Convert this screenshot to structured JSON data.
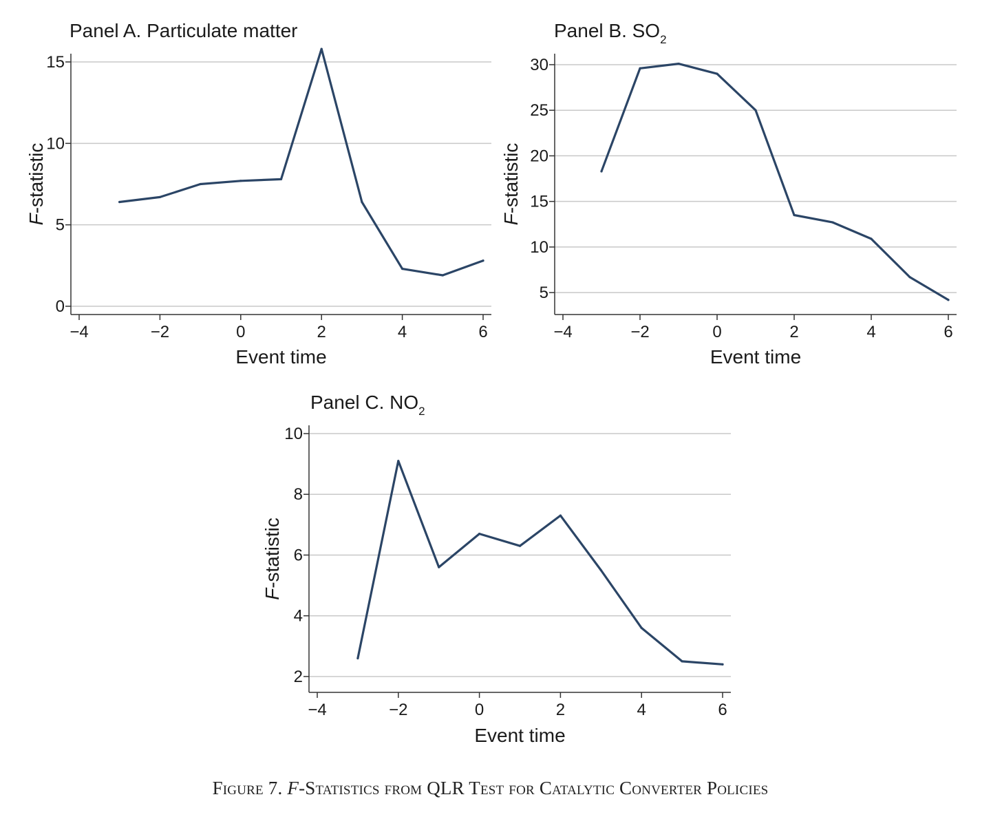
{
  "caption": {
    "figure_label": "Figure 7.",
    "f_letter": "F",
    "title_rest": "-Statistics from QLR Test for Catalytic Converter Policies"
  },
  "colors": {
    "line": "#2b4566",
    "grid": "#c8c8c8",
    "axis": "#333333",
    "text": "#1a1a1a"
  },
  "chart_data": [
    {
      "type": "line",
      "title": "Panel A. Particulate matter",
      "title_main": "Panel A. Particulate matter",
      "title_sub": "",
      "xlabel": "Event time",
      "ylabel_italic": "F",
      "ylabel_rest": "-statistic",
      "xlim": [
        -4,
        6
      ],
      "ylim": [
        0,
        15
      ],
      "xticks": [
        -4,
        -2,
        0,
        2,
        4,
        6
      ],
      "xtick_labels": [
        "−4",
        "−2",
        "0",
        "2",
        "4",
        "6"
      ],
      "yticks": [
        0,
        5,
        10,
        15
      ],
      "ytick_labels": [
        "0",
        "5",
        "10",
        "15"
      ],
      "grid": true,
      "x": [
        -3,
        -2,
        -1,
        0,
        1,
        2,
        3,
        4,
        5,
        6
      ],
      "y": [
        6.4,
        6.7,
        7.5,
        7.7,
        7.8,
        15.8,
        6.4,
        2.3,
        1.9,
        2.8
      ]
    },
    {
      "type": "line",
      "title": "Panel B. SO2",
      "title_main": "Panel B. SO",
      "title_sub": "2",
      "xlabel": "Event time",
      "ylabel_italic": "F",
      "ylabel_rest": "-statistic",
      "xlim": [
        -4,
        6
      ],
      "ylim": [
        3.5,
        30.3
      ],
      "xticks": [
        -4,
        -2,
        0,
        2,
        4,
        6
      ],
      "xtick_labels": [
        "−4",
        "−2",
        "0",
        "2",
        "4",
        "6"
      ],
      "yticks": [
        5,
        10,
        15,
        20,
        25,
        30
      ],
      "ytick_labels": [
        "5",
        "10",
        "15",
        "20",
        "25",
        "30"
      ],
      "grid": true,
      "x": [
        -3,
        -2,
        -1,
        0,
        1,
        2,
        3,
        4,
        5,
        6
      ],
      "y": [
        18.3,
        29.6,
        30.1,
        29.0,
        25.0,
        13.5,
        12.7,
        10.9,
        6.7,
        4.2
      ]
    },
    {
      "type": "line",
      "title": "Panel C. NO2",
      "title_main": "Panel C. NO",
      "title_sub": "2",
      "xlabel": "Event time",
      "ylabel_italic": "F",
      "ylabel_rest": "-statistic",
      "xlim": [
        -4,
        6
      ],
      "ylim": [
        1.75,
        10
      ],
      "xticks": [
        -4,
        -2,
        0,
        2,
        4,
        6
      ],
      "xtick_labels": [
        "−4",
        "−2",
        "0",
        "2",
        "4",
        "6"
      ],
      "yticks": [
        2,
        4,
        6,
        8,
        10
      ],
      "ytick_labels": [
        "2",
        "4",
        "6",
        "8",
        "10"
      ],
      "grid": true,
      "x": [
        -3,
        -2,
        -1,
        0,
        1,
        2,
        3,
        4,
        5,
        6
      ],
      "y": [
        2.6,
        9.1,
        5.6,
        6.7,
        6.3,
        7.3,
        5.5,
        3.6,
        2.5,
        2.4
      ]
    }
  ]
}
